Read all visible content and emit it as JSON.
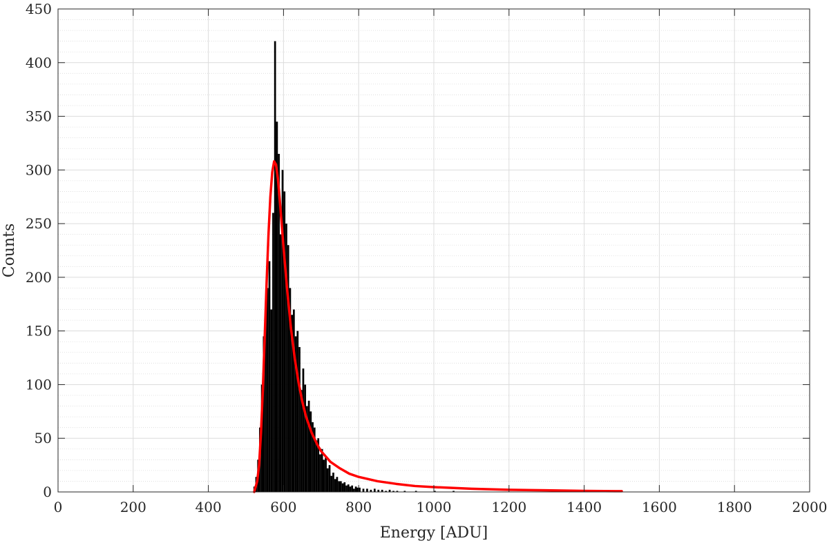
{
  "chart_data": {
    "type": "histogram",
    "xlabel": "Energy [ADU]",
    "ylabel": "Counts",
    "xlim": [
      0,
      2000
    ],
    "ylim": [
      0,
      450
    ],
    "x_ticks": [
      0,
      200,
      400,
      600,
      800,
      1000,
      1200,
      1400,
      1600,
      1800,
      2000
    ],
    "y_ticks": [
      0,
      50,
      100,
      150,
      200,
      250,
      300,
      350,
      400,
      450
    ],
    "grid": true,
    "minor_grid": true,
    "legend": "none",
    "series": [
      {
        "kind": "histogram",
        "color": "#000000",
        "bin_width": 5,
        "bins": [
          {
            "x": 520,
            "y": 5
          },
          {
            "x": 525,
            "y": 14
          },
          {
            "x": 530,
            "y": 30
          },
          {
            "x": 535,
            "y": 60
          },
          {
            "x": 540,
            "y": 100
          },
          {
            "x": 545,
            "y": 145
          },
          {
            "x": 550,
            "y": 165
          },
          {
            "x": 555,
            "y": 190
          },
          {
            "x": 560,
            "y": 215
          },
          {
            "x": 565,
            "y": 170
          },
          {
            "x": 570,
            "y": 260
          },
          {
            "x": 575,
            "y": 420
          },
          {
            "x": 580,
            "y": 345
          },
          {
            "x": 585,
            "y": 315
          },
          {
            "x": 590,
            "y": 240
          },
          {
            "x": 595,
            "y": 300
          },
          {
            "x": 600,
            "y": 280
          },
          {
            "x": 605,
            "y": 250
          },
          {
            "x": 610,
            "y": 230
          },
          {
            "x": 615,
            "y": 190
          },
          {
            "x": 620,
            "y": 165
          },
          {
            "x": 625,
            "y": 170
          },
          {
            "x": 630,
            "y": 145
          },
          {
            "x": 635,
            "y": 150
          },
          {
            "x": 640,
            "y": 135
          },
          {
            "x": 645,
            "y": 95
          },
          {
            "x": 650,
            "y": 115
          },
          {
            "x": 655,
            "y": 100
          },
          {
            "x": 660,
            "y": 80
          },
          {
            "x": 665,
            "y": 85
          },
          {
            "x": 670,
            "y": 75
          },
          {
            "x": 675,
            "y": 65
          },
          {
            "x": 680,
            "y": 60
          },
          {
            "x": 685,
            "y": 48
          },
          {
            "x": 690,
            "y": 50
          },
          {
            "x": 695,
            "y": 35
          },
          {
            "x": 700,
            "y": 40
          },
          {
            "x": 705,
            "y": 30
          },
          {
            "x": 710,
            "y": 32
          },
          {
            "x": 715,
            "y": 22
          },
          {
            "x": 720,
            "y": 25
          },
          {
            "x": 725,
            "y": 15
          },
          {
            "x": 730,
            "y": 18
          },
          {
            "x": 735,
            "y": 12
          },
          {
            "x": 740,
            "y": 14
          },
          {
            "x": 745,
            "y": 10
          },
          {
            "x": 750,
            "y": 10
          },
          {
            "x": 755,
            "y": 8
          },
          {
            "x": 760,
            "y": 9
          },
          {
            "x": 765,
            "y": 6
          },
          {
            "x": 770,
            "y": 7
          },
          {
            "x": 775,
            "y": 5
          },
          {
            "x": 780,
            "y": 6
          },
          {
            "x": 785,
            "y": 3
          },
          {
            "x": 790,
            "y": 5
          },
          {
            "x": 795,
            "y": 4
          },
          {
            "x": 800,
            "y": 4
          },
          {
            "x": 810,
            "y": 3
          },
          {
            "x": 820,
            "y": 3
          },
          {
            "x": 830,
            "y": 2
          },
          {
            "x": 840,
            "y": 3
          },
          {
            "x": 850,
            "y": 2
          },
          {
            "x": 860,
            "y": 2
          },
          {
            "x": 870,
            "y": 1
          },
          {
            "x": 880,
            "y": 2
          },
          {
            "x": 890,
            "y": 1
          },
          {
            "x": 900,
            "y": 1
          },
          {
            "x": 920,
            "y": 1
          },
          {
            "x": 950,
            "y": 1
          },
          {
            "x": 1000,
            "y": 1
          },
          {
            "x": 1050,
            "y": 1
          }
        ]
      },
      {
        "kind": "fit-curve",
        "color": "#ff0000",
        "points": [
          [
            522,
            0
          ],
          [
            530,
            10
          ],
          [
            535,
            25
          ],
          [
            540,
            55
          ],
          [
            545,
            95
          ],
          [
            550,
            145
          ],
          [
            555,
            195
          ],
          [
            560,
            240
          ],
          [
            565,
            275
          ],
          [
            570,
            298
          ],
          [
            575,
            308
          ],
          [
            580,
            305
          ],
          [
            585,
            292
          ],
          [
            590,
            272
          ],
          [
            595,
            250
          ],
          [
            600,
            228
          ],
          [
            610,
            187
          ],
          [
            620,
            152
          ],
          [
            630,
            124
          ],
          [
            640,
            102
          ],
          [
            650,
            84
          ],
          [
            660,
            70
          ],
          [
            675,
            55
          ],
          [
            690,
            44
          ],
          [
            700,
            38
          ],
          [
            725,
            28
          ],
          [
            750,
            22
          ],
          [
            775,
            17
          ],
          [
            800,
            14
          ],
          [
            850,
            10
          ],
          [
            900,
            7.5
          ],
          [
            950,
            5.5
          ],
          [
            1000,
            4.5
          ],
          [
            1100,
            3
          ],
          [
            1200,
            2
          ],
          [
            1300,
            1.5
          ],
          [
            1400,
            1
          ],
          [
            1500,
            0.7
          ]
        ]
      }
    ]
  }
}
